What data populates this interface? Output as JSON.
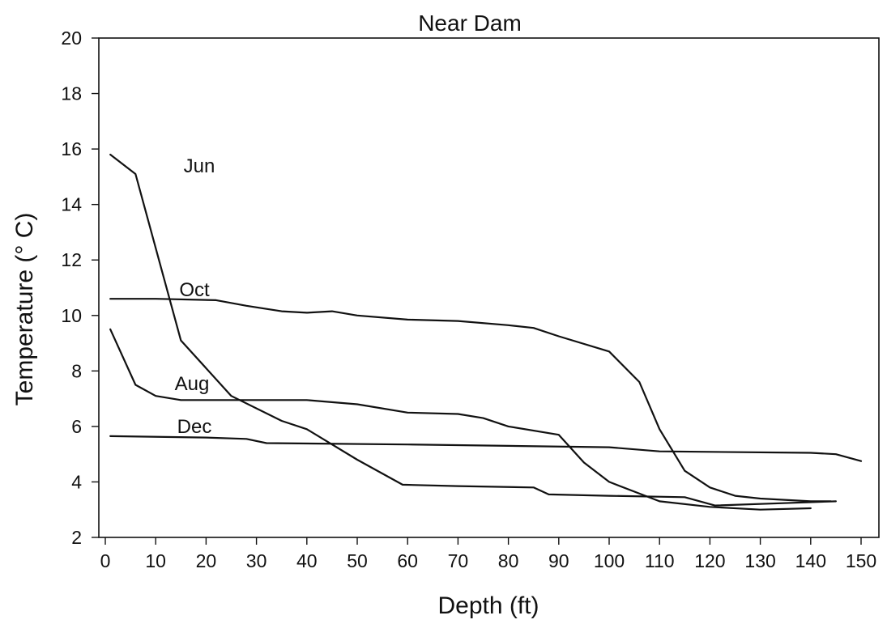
{
  "chart_data": {
    "type": "line",
    "title": "Near Dam",
    "xlabel": "Depth (ft)",
    "ylabel": "Temperature (° C)",
    "xlim": [
      0,
      150
    ],
    "ylim": [
      2,
      20
    ],
    "xticks": [
      0,
      10,
      20,
      30,
      40,
      50,
      60,
      70,
      80,
      90,
      100,
      110,
      120,
      130,
      140,
      150
    ],
    "yticks": [
      2,
      4,
      6,
      8,
      10,
      12,
      14,
      16,
      18,
      20
    ],
    "grid": false,
    "legend": "inline labels",
    "series": [
      {
        "name": "Jun",
        "x": [
          1,
          6,
          15,
          25,
          35,
          40,
          50,
          59,
          70,
          85,
          88,
          100,
          115,
          121,
          145
        ],
        "y": [
          15.8,
          15.1,
          9.1,
          7.1,
          6.2,
          5.9,
          4.8,
          3.9,
          3.85,
          3.8,
          3.55,
          3.5,
          3.45,
          3.15,
          3.3
        ]
      },
      {
        "name": "Oct",
        "x": [
          1,
          10,
          22,
          28,
          35,
          40,
          45,
          50,
          60,
          70,
          80,
          85,
          90,
          100,
          106,
          110,
          115,
          120,
          125,
          130,
          140,
          144
        ],
        "y": [
          10.6,
          10.6,
          10.55,
          10.35,
          10.15,
          10.1,
          10.15,
          10.0,
          9.85,
          9.8,
          9.65,
          9.55,
          9.25,
          8.7,
          7.6,
          5.9,
          4.4,
          3.8,
          3.5,
          3.4,
          3.3,
          3.3
        ]
      },
      {
        "name": "Aug",
        "x": [
          1,
          6,
          10,
          15,
          20,
          40,
          50,
          60,
          70,
          75,
          80,
          90,
          95,
          100,
          110,
          120,
          130,
          140
        ],
        "y": [
          9.5,
          7.5,
          7.1,
          6.95,
          6.95,
          6.95,
          6.8,
          6.5,
          6.45,
          6.3,
          6.0,
          5.7,
          4.7,
          4.0,
          3.3,
          3.1,
          3.0,
          3.05
        ]
      },
      {
        "name": "Dec",
        "x": [
          1,
          20,
          28,
          32,
          60,
          80,
          100,
          110,
          140,
          145,
          150
        ],
        "y": [
          5.65,
          5.6,
          5.55,
          5.4,
          5.35,
          5.3,
          5.25,
          5.1,
          5.05,
          5.0,
          4.75
        ]
      }
    ]
  }
}
